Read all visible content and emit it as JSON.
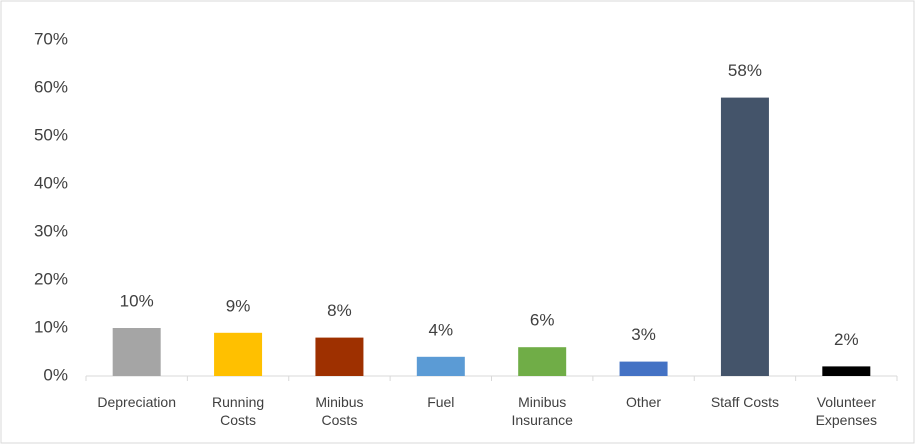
{
  "chart_data": {
    "type": "bar",
    "categories": [
      "Depreciation",
      "Running Costs",
      "Minibus Costs",
      "Fuel",
      "Minibus Insurance",
      "Other",
      "Staff Costs",
      "Volunteer Expenses"
    ],
    "values": [
      10,
      9,
      8,
      4,
      6,
      3,
      58,
      2
    ],
    "value_labels": [
      "10%",
      "9%",
      "8%",
      "4%",
      "6%",
      "3%",
      "58%",
      "2%"
    ],
    "colors": [
      "#a5a5a5",
      "#ffc000",
      "#9e3000",
      "#5b9bd5",
      "#70ad47",
      "#4472c4",
      "#44546a",
      "#000000"
    ],
    "ylim": [
      0,
      70
    ],
    "yticks": [
      {
        "value": 0,
        "label": "0%"
      },
      {
        "value": 10,
        "label": "10%"
      },
      {
        "value": 20,
        "label": "20%"
      },
      {
        "value": 30,
        "label": "30%"
      },
      {
        "value": 40,
        "label": "40%"
      },
      {
        "value": 50,
        "label": "50%"
      },
      {
        "value": 60,
        "label": "60%"
      },
      {
        "value": 70,
        "label": "70%"
      }
    ],
    "grid": false
  }
}
